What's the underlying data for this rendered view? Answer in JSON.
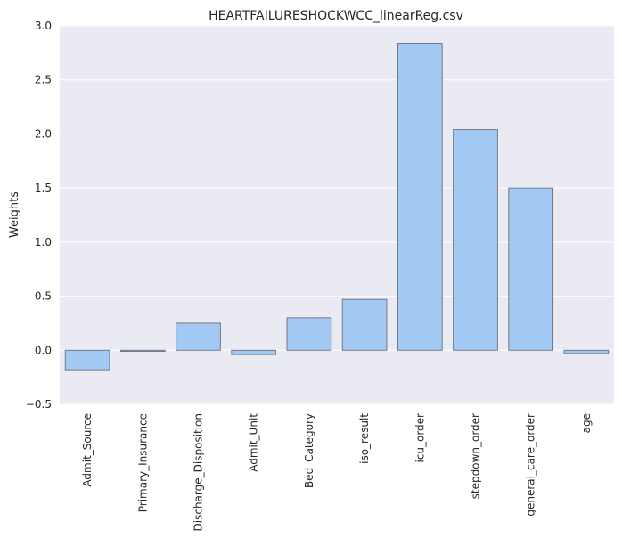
{
  "chart_data": {
    "type": "bar",
    "title": "HEARTFAILURESHOCKWCC_linearReg.csv",
    "xlabel": "",
    "ylabel": "Weights",
    "ylim": [
      -0.5,
      3.0
    ],
    "yticks": [
      "−0.5",
      "0.0",
      "0.5",
      "1.0",
      "1.5",
      "2.0",
      "2.5",
      "3.0"
    ],
    "ytick_values": [
      -0.5,
      0.0,
      0.5,
      1.0,
      1.5,
      2.0,
      2.5,
      3.0
    ],
    "categories": [
      "Admit_Source",
      "Primary_Insurance",
      "Discharge_Disposition",
      "Admit_Unit",
      "Bed_Category",
      "iso_result",
      "icu_order",
      "stepdown_order",
      "general_care_order",
      "age"
    ],
    "values": [
      -0.18,
      -0.01,
      0.25,
      -0.04,
      0.3,
      0.47,
      2.84,
      2.04,
      1.5,
      -0.03
    ],
    "grid": true,
    "colors": {
      "background": "#eaeaf2",
      "bar_fill": "#a1c9f4",
      "bar_edge": "#6e6e7e",
      "grid": "#ffffff"
    }
  }
}
